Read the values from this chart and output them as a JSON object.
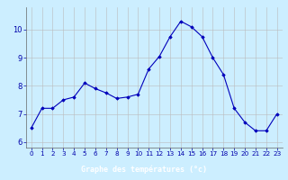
{
  "hours": [
    0,
    1,
    2,
    3,
    4,
    5,
    6,
    7,
    8,
    9,
    10,
    11,
    12,
    13,
    14,
    15,
    16,
    17,
    18,
    19,
    20,
    21,
    22,
    23
  ],
  "temperatures": [
    6.5,
    7.2,
    7.2,
    7.5,
    7.6,
    8.1,
    7.9,
    7.75,
    7.55,
    7.6,
    7.7,
    8.6,
    9.05,
    9.75,
    10.3,
    10.1,
    9.75,
    9.0,
    8.4,
    7.2,
    6.7,
    6.4,
    6.4,
    7.0
  ],
  "xlabel": "Graphe des températures (°c)",
  "ylim": [
    5.8,
    10.8
  ],
  "xlim": [
    -0.5,
    23.5
  ],
  "bg_color": "#cceeff",
  "line_color": "#0000bb",
  "marker_color": "#0000bb",
  "grid_color": "#bbbbbb",
  "tick_label_color": "#0000aa",
  "yticks": [
    6,
    7,
    8,
    9,
    10
  ],
  "xticks": [
    0,
    1,
    2,
    3,
    4,
    5,
    6,
    7,
    8,
    9,
    10,
    11,
    12,
    13,
    14,
    15,
    16,
    17,
    18,
    19,
    20,
    21,
    22,
    23
  ],
  "xlabel_bg": "#0000aa",
  "xlabel_text_color": "#ffffff",
  "xlabel_fontsize": 6.0,
  "tick_fontsize_x": 5.2,
  "tick_fontsize_y": 6.0
}
